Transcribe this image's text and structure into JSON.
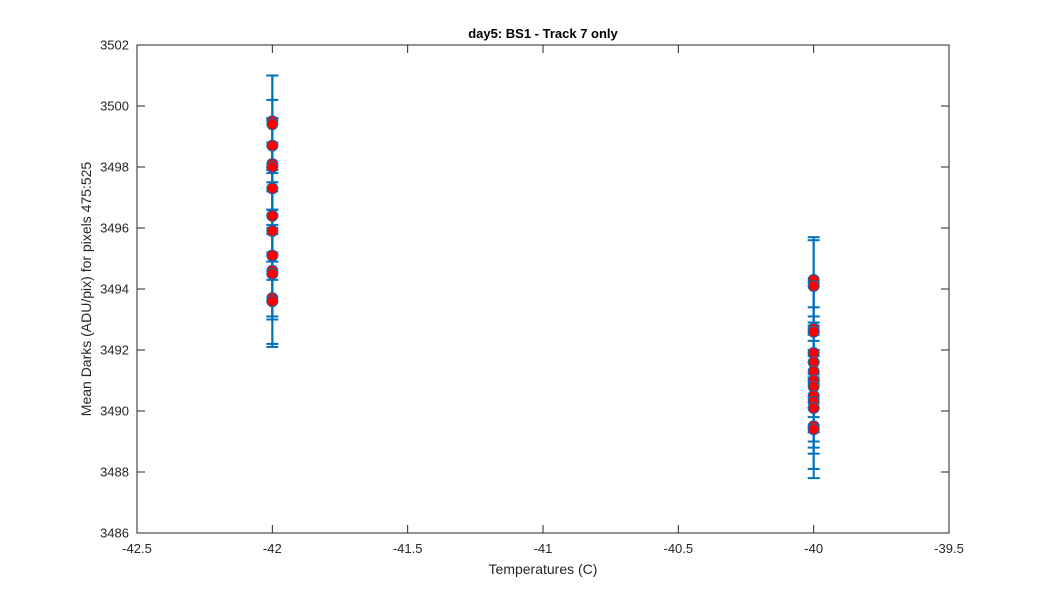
{
  "chart_data": {
    "type": "scatter",
    "title": "day5: BS1 - Track 7 only",
    "xlabel": "Temperatures (C)",
    "ylabel": "Mean Darks (ADU/pix) for pixels 475:525",
    "xlim": [
      -42.5,
      -39.5
    ],
    "ylim": [
      3486,
      3502
    ],
    "xticks": [
      "-42.5",
      "-42",
      "-41.5",
      "-41",
      "-40.5",
      "-40",
      "-39.5"
    ],
    "yticks": [
      "3486",
      "3488",
      "3490",
      "3492",
      "3494",
      "3496",
      "3498",
      "3500",
      "3502"
    ],
    "grid": false,
    "series": [
      {
        "points": [
          {
            "x": -42,
            "y": 3499.5,
            "err": 1.5
          },
          {
            "x": -42,
            "y": 3499.4,
            "err": 1.6
          },
          {
            "x": -42,
            "y": 3498.7,
            "err": 1.5
          },
          {
            "x": -42,
            "y": 3498.1,
            "err": 1.5
          },
          {
            "x": -42,
            "y": 3498.0,
            "err": 1.6
          },
          {
            "x": -42,
            "y": 3497.3,
            "err": 1.5
          },
          {
            "x": -42,
            "y": 3496.4,
            "err": 1.5
          },
          {
            "x": -42,
            "y": 3496.4,
            "err": 1.5
          },
          {
            "x": -42,
            "y": 3495.9,
            "err": 1.6
          },
          {
            "x": -42,
            "y": 3495.1,
            "err": 1.5
          },
          {
            "x": -42,
            "y": 3494.6,
            "err": 1.5
          },
          {
            "x": -42,
            "y": 3494.5,
            "err": 1.5
          },
          {
            "x": -42,
            "y": 3493.7,
            "err": 1.5
          },
          {
            "x": -42,
            "y": 3493.6,
            "err": 1.5
          },
          {
            "x": -40,
            "y": 3494.3,
            "err": 1.4
          },
          {
            "x": -40,
            "y": 3494.1,
            "err": 1.5
          },
          {
            "x": -40,
            "y": 3492.7,
            "err": 1.5
          },
          {
            "x": -40,
            "y": 3492.6,
            "err": 1.5
          },
          {
            "x": -40,
            "y": 3491.9,
            "err": 1.5
          },
          {
            "x": -40,
            "y": 3491.6,
            "err": 1.5
          },
          {
            "x": -40,
            "y": 3491.3,
            "err": 1.5
          },
          {
            "x": -40,
            "y": 3491.0,
            "err": 1.5
          },
          {
            "x": -40,
            "y": 3490.8,
            "err": 1.5
          },
          {
            "x": -40,
            "y": 3490.5,
            "err": 1.5
          },
          {
            "x": -40,
            "y": 3490.3,
            "err": 1.5
          },
          {
            "x": -40,
            "y": 3490.1,
            "err": 1.5
          },
          {
            "x": -40,
            "y": 3489.5,
            "err": 1.4
          },
          {
            "x": -40,
            "y": 3489.4,
            "err": 1.6
          }
        ]
      }
    ],
    "colors": {
      "errorbar": "#0072BD",
      "marker_fill": "#FF0000",
      "marker_edge": "#0072BD",
      "axes": "#262626"
    }
  }
}
